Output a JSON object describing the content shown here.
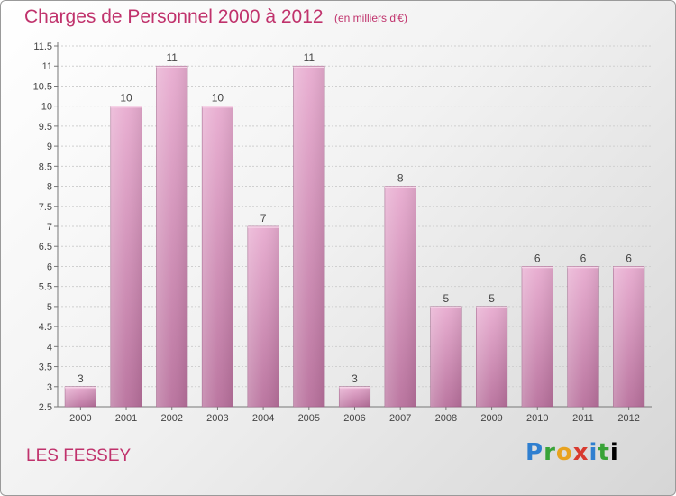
{
  "title": "Charges de Personnel 2000 à 2012",
  "subtitle": "(en milliers d'€)",
  "commune": "LES FESSEY",
  "logo": [
    "P",
    "r",
    "o",
    "x",
    "i",
    "t",
    "i"
  ],
  "colors": {
    "bar_top": "#e8acd0",
    "bar_bottom": "#b8709c",
    "accent": "#c0326c",
    "grid": "#cfcfcf"
  },
  "chart_data": {
    "type": "bar",
    "categories": [
      "2000",
      "2001",
      "2002",
      "2003",
      "2004",
      "2005",
      "2006",
      "2007",
      "2008",
      "2009",
      "2010",
      "2011",
      "2012"
    ],
    "values": [
      3,
      10,
      11,
      10,
      7,
      11,
      3,
      8,
      5,
      5,
      6,
      6,
      6
    ],
    "value_labels": [
      "3",
      "10",
      "11",
      "10",
      "7",
      "11",
      "3",
      "8",
      "5",
      "5",
      "6",
      "6",
      "6"
    ],
    "ylim": [
      2.5,
      11.5
    ],
    "yticks": [
      2.5,
      3,
      3.5,
      4,
      4.5,
      5,
      5.5,
      6,
      6.5,
      7,
      7.5,
      8,
      8.5,
      9,
      9.5,
      10,
      10.5,
      11,
      11.5
    ],
    "ytick_labels": [
      "2.5",
      "3",
      "3.5",
      "4",
      "4.5",
      "5",
      "5.5",
      "6",
      "6.5",
      "7",
      "7.5",
      "8",
      "8.5",
      "9",
      "9.5",
      "10",
      "10.5",
      "11",
      "11.5"
    ],
    "grid": true,
    "xlabel": "",
    "ylabel": ""
  }
}
